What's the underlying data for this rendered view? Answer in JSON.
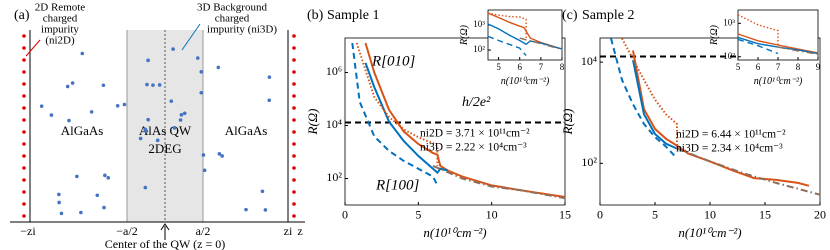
{
  "diagram": {
    "panel_label": "(a)",
    "remote_label": [
      "2D Remote",
      "charged",
      "impurity",
      "(ni2D)"
    ],
    "background_label": [
      "3D Background",
      "charged",
      "impurity (ni3D)"
    ],
    "layers": [
      "AlGaAs",
      "AlAs QW",
      "2DEG",
      "AlGaAs"
    ],
    "axis_labels": [
      "−zi",
      "−a/2",
      "a/2",
      "zi",
      "z"
    ],
    "center_label": "Center of the QW (z = 0)"
  },
  "chart_data": [
    {
      "type": "line",
      "panel_label": "(b)",
      "title": "Sample 1",
      "xlabel": "n(10¹⁰cm⁻²)",
      "ylabel": "R(Ω)",
      "log_y": true,
      "xlim": [
        0,
        15
      ],
      "xticks": [
        0,
        5,
        10,
        15
      ],
      "ylim": [
        10,
        20000000
      ],
      "yticks": [
        {
          "value": 100,
          "label": "10²"
        },
        {
          "value": 10000,
          "label": "10⁴"
        },
        {
          "value": 1000000,
          "label": "10⁶"
        }
      ],
      "hlines": [
        {
          "value": 12906,
          "color": "#000000",
          "dash": "dashed"
        }
      ],
      "annotations": [
        "h/2e²",
        "ni2D = 3.71 × 10¹¹cm⁻²",
        "ni3D = 2.22 × 10⁴cm⁻³"
      ],
      "series": [
        {
          "name": "R[010]",
          "color": "#d95319",
          "dash": "solid",
          "x": [
            1.4,
            2,
            3,
            4,
            5,
            6,
            6.3,
            6.5,
            7,
            8,
            10,
            12,
            15
          ],
          "values": [
            13000000,
            1000000,
            39000,
            6000,
            2000,
            910,
            800,
            300,
            200,
            118,
            55,
            36,
            20
          ]
        },
        {
          "name": "R[100]",
          "color": "#0072bd",
          "dash": "solid",
          "x": [
            1.4,
            2,
            3,
            4,
            5,
            6,
            6.3,
            6.5,
            7
          ],
          "values": [
            2300000,
            280000,
            14000,
            2600,
            710,
            235,
            167,
            235,
            200
          ]
        },
        {
          "color": "#0072bd",
          "dash": "dashed",
          "x": [
            0.5,
            1,
            2,
            3,
            4,
            5,
            6,
            6.3
          ],
          "values": [
            13000000,
            78000,
            3900,
            1100,
            460,
            235,
            118,
            55
          ]
        },
        {
          "color": "#d95319",
          "dash": "dotted",
          "x": [
            0.8,
            2,
            3,
            4,
            5,
            6,
            6.3,
            6.3
          ],
          "values": [
            13000000,
            118000,
            21000,
            7100,
            3600,
            2150,
            1670,
            300
          ]
        },
        {
          "color": "#8c6e5a",
          "dash": "dashdot",
          "x": [
            6,
            8,
            10,
            12,
            15
          ],
          "values": [
            300,
            100,
            50,
            36,
            18
          ]
        }
      ]
    },
    {
      "type": "line",
      "xlabel": "n(10¹⁰cm⁻²)",
      "ylabel": "R(Ω)",
      "log_y": true,
      "xlim": [
        4.5,
        8
      ],
      "xticks": [
        5,
        6,
        7,
        8
      ],
      "ylim": [
        40,
        4000
      ],
      "yticks": [
        {
          "value": 100,
          "label": "10²"
        },
        {
          "value": 1000,
          "label": "10³"
        }
      ],
      "series": [
        {
          "color": "#d95319",
          "dash": "solid",
          "x": [
            4.5,
            5,
            5.5,
            6,
            6.2,
            6.5,
            7,
            8
          ],
          "values": [
            3000,
            2000,
            1300,
            900,
            800,
            300,
            200,
            110
          ]
        },
        {
          "color": "#0072bd",
          "dash": "solid",
          "x": [
            4.5,
            5,
            5.5,
            6,
            6.3,
            6.5,
            7,
            8
          ],
          "values": [
            1100,
            700,
            400,
            240,
            170,
            230,
            190,
            110
          ]
        },
        {
          "color": "#d95319",
          "dash": "dotted",
          "x": [
            4.5,
            5,
            5.5,
            6,
            6.3,
            6.3
          ],
          "values": [
            3000,
            2500,
            2200,
            2100,
            1700,
            300
          ]
        },
        {
          "color": "#0072bd",
          "dash": "dashed",
          "x": [
            4.5,
            5,
            5.5,
            6,
            6.3
          ],
          "values": [
            350,
            240,
            170,
            120,
            60
          ]
        },
        {
          "color": "#8c6e5a",
          "dash": "dashdot",
          "x": [
            6,
            7,
            8
          ],
          "values": [
            300,
            180,
            105
          ]
        }
      ]
    },
    {
      "type": "line",
      "panel_label": "(c)",
      "title": "Sample 2",
      "xlabel": "n(10¹⁰cm⁻²)",
      "ylabel": "R(Ω)",
      "log_y": true,
      "xlim": [
        0,
        20
      ],
      "xticks": [
        0,
        5,
        10,
        15,
        20
      ],
      "ylim": [
        15,
        30000
      ],
      "yticks": [
        {
          "value": 100,
          "label": "10²"
        },
        {
          "value": 10000,
          "label": "10⁴"
        }
      ],
      "hlines": [
        {
          "value": 12906,
          "color": "#000000",
          "dash": "dashed"
        }
      ],
      "annotations": [
        "ni2D = 6.44 × 10¹¹cm⁻²",
        "ni3D = 2.34 × 10⁴cm⁻³"
      ],
      "series": [
        {
          "color": "#d95319",
          "dash": "solid",
          "x": [
            3,
            4,
            5,
            6,
            7,
            8,
            10,
            12,
            14,
            16,
            18,
            19
          ],
          "values": [
            17000,
            1170,
            480,
            305,
            224,
            156,
            109,
            73,
            51,
            47,
            41,
            36
          ]
        },
        {
          "color": "#0072bd",
          "dash": "solid",
          "x": [
            3,
            4,
            5,
            6,
            7
          ],
          "values": [
            11000,
            930,
            380,
            245,
            195
          ]
        },
        {
          "color": "#0072bd",
          "dash": "dashed",
          "x": [
            1,
            2,
            3,
            4,
            5,
            6,
            7
          ],
          "values": [
            29500,
            4450,
            1470,
            600,
            330,
            214,
            125
          ]
        },
        {
          "color": "#d95319",
          "dash": "dotted",
          "x": [
            2,
            4,
            5,
            6,
            7,
            7
          ],
          "values": [
            29500,
            4450,
            1820,
            930,
            600,
            195
          ]
        },
        {
          "color": "#8c6e5a",
          "dash": "dashdot",
          "x": [
            7,
            10,
            13,
            16,
            20
          ],
          "values": [
            195,
            109,
            64,
            41,
            24
          ]
        }
      ]
    },
    {
      "type": "line",
      "xlabel": "n(10¹⁰cm⁻²)",
      "ylabel": "R(Ω)",
      "log_y": true,
      "xlim": [
        5,
        9
      ],
      "xticks": [
        5,
        6,
        7,
        8,
        9
      ],
      "ylim": [
        80,
        2500
      ],
      "yticks": [
        {
          "value": 100,
          "label": "10²"
        },
        {
          "value": 1000,
          "label": "10³"
        }
      ],
      "series": [
        {
          "color": "#d95319",
          "dash": "solid",
          "x": [
            5,
            6,
            7,
            8,
            9
          ],
          "values": [
            480,
            300,
            224,
            170,
            130
          ]
        },
        {
          "color": "#0072bd",
          "dash": "solid",
          "x": [
            5,
            6,
            7,
            8,
            9
          ],
          "values": [
            380,
            245,
            195,
            160,
            125
          ]
        },
        {
          "color": "#d95319",
          "dash": "dotted",
          "x": [
            5,
            6,
            7,
            7
          ],
          "values": [
            1800,
            900,
            600,
            195
          ]
        },
        {
          "color": "#0072bd",
          "dash": "dashed",
          "x": [
            5,
            6,
            7
          ],
          "values": [
            330,
            214,
            125
          ]
        },
        {
          "color": "#8c6e5a",
          "dash": "dashdot",
          "x": [
            7,
            8,
            9
          ],
          "values": [
            195,
            150,
            120
          ]
        }
      ]
    }
  ]
}
